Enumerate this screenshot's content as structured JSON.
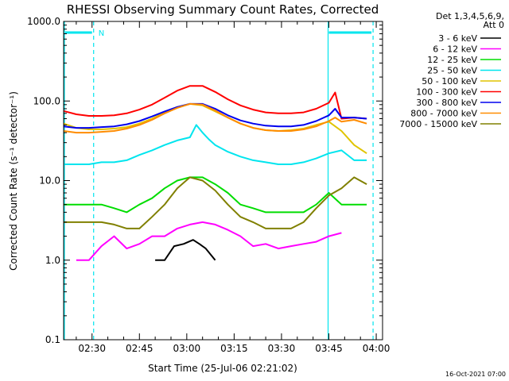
{
  "chart_data": {
    "type": "line",
    "title": "RHESSI Observing Summary Count Rates, Corrected",
    "xlabel": "Start Time (25-Jul-06 02:21:02)",
    "ylabel": "Corrected Count Rate (s⁻¹ detector⁻¹)",
    "yscale": "log",
    "ylim": [
      0.1,
      1000
    ],
    "xlim_minutes_after_0221": [
      0,
      101
    ],
    "x_unit": "minutes after 02:21:02 UT",
    "x_ticks": [
      {
        "label": "02:30",
        "minute": 9
      },
      {
        "label": "02:45",
        "minute": 24
      },
      {
        "label": "03:00",
        "minute": 39
      },
      {
        "label": "03:15",
        "minute": 54
      },
      {
        "label": "03:30",
        "minute": 69
      },
      {
        "label": "03:45",
        "minute": 84
      },
      {
        "label": "04:00",
        "minute": 99
      }
    ],
    "y_ticks": [
      "0.1",
      "1.0",
      "10.0",
      "100.0",
      "1000.0"
    ],
    "legend_header": [
      "Det 1,3,4,5,6,9,",
      "Att 0"
    ],
    "legend_position": "right",
    "footer_date": "16-Oct-2021 07:00",
    "night_marker": "N",
    "night_intervals_min": [
      [
        0,
        9.5
      ],
      [
        83.5,
        98
      ]
    ],
    "series": [
      {
        "name": "3 - 6 keV",
        "color": "#000000",
        "x": [
          29,
          32,
          35,
          38,
          41,
          43,
          45,
          48
        ],
        "y": [
          1.0,
          1.0,
          1.5,
          1.6,
          1.8,
          1.6,
          1.4,
          1.0
        ]
      },
      {
        "name": "6 - 12 keV",
        "color": "#ff00ff",
        "x": [
          4,
          8,
          12,
          16,
          20,
          24,
          28,
          32,
          36,
          40,
          44,
          48,
          52,
          56,
          60,
          64,
          68,
          72,
          76,
          80,
          84,
          88
        ],
        "y": [
          1.0,
          1.0,
          1.5,
          2.0,
          1.4,
          1.6,
          2.0,
          2.0,
          2.5,
          2.8,
          3.0,
          2.8,
          2.4,
          2.0,
          1.5,
          1.6,
          1.4,
          1.5,
          1.6,
          1.7,
          2.0,
          2.2
        ]
      },
      {
        "name": "12 - 25 keV",
        "color": "#00dd00",
        "x": [
          0,
          4,
          8,
          12,
          16,
          20,
          24,
          28,
          32,
          36,
          40,
          44,
          48,
          52,
          56,
          60,
          64,
          68,
          72,
          76,
          80,
          84,
          88,
          92,
          96
        ],
        "y": [
          5.0,
          5.0,
          5.0,
          5.0,
          4.5,
          4.0,
          5.0,
          6.0,
          8.0,
          10.0,
          11.0,
          11.0,
          9.0,
          7.0,
          5.0,
          4.5,
          4.0,
          4.0,
          4.0,
          4.0,
          5.0,
          7.0,
          5.0,
          5.0,
          5.0
        ]
      },
      {
        "name": "25 - 50 keV",
        "color": "#00e5ee",
        "x": [
          0,
          4,
          8,
          12,
          16,
          20,
          24,
          28,
          32,
          36,
          40,
          42,
          44,
          46,
          48,
          52,
          56,
          60,
          64,
          68,
          72,
          76,
          80,
          84,
          88,
          92,
          96
        ],
        "y": [
          16,
          16,
          16,
          17,
          17,
          18,
          21,
          24,
          28,
          32,
          35,
          50,
          40,
          33,
          28,
          23,
          20,
          18,
          17,
          16,
          16,
          17,
          19,
          22,
          24,
          18,
          18
        ]
      },
      {
        "name": "50 - 100 keV",
        "color": "#e0c400",
        "x": [
          0,
          4,
          8,
          12,
          16,
          20,
          24,
          28,
          32,
          36,
          40,
          44,
          48,
          52,
          56,
          60,
          64,
          68,
          72,
          76,
          80,
          84,
          88,
          92,
          96
        ],
        "y": [
          52,
          46,
          44,
          44,
          45,
          47,
          52,
          60,
          72,
          84,
          92,
          88,
          74,
          62,
          52,
          46,
          43,
          42,
          43,
          45,
          50,
          55,
          42,
          28,
          22
        ]
      },
      {
        "name": "100 - 300 keV",
        "color": "#ff0000",
        "x": [
          0,
          4,
          8,
          12,
          16,
          20,
          24,
          28,
          32,
          36,
          40,
          44,
          48,
          52,
          56,
          60,
          64,
          68,
          72,
          76,
          80,
          84,
          86,
          88,
          92,
          96
        ],
        "y": [
          75,
          68,
          65,
          65,
          66,
          70,
          78,
          90,
          110,
          135,
          155,
          155,
          130,
          105,
          88,
          78,
          72,
          70,
          70,
          72,
          80,
          95,
          128,
          60,
          62,
          60
        ]
      },
      {
        "name": "300 - 800 keV",
        "color": "#0000ee",
        "x": [
          0,
          4,
          8,
          12,
          16,
          20,
          24,
          28,
          32,
          36,
          40,
          44,
          48,
          52,
          56,
          60,
          64,
          68,
          72,
          76,
          80,
          84,
          86,
          88,
          92,
          96
        ],
        "y": [
          48,
          46,
          46,
          47,
          48,
          51,
          56,
          64,
          74,
          84,
          92,
          92,
          80,
          66,
          57,
          52,
          49,
          48,
          48,
          50,
          56,
          66,
          80,
          62,
          62,
          60
        ]
      },
      {
        "name": "800 - 7000 keV",
        "color": "#ff8c00",
        "x": [
          0,
          4,
          8,
          12,
          16,
          20,
          24,
          28,
          32,
          36,
          40,
          44,
          48,
          52,
          56,
          60,
          64,
          68,
          72,
          76,
          80,
          84,
          86,
          88,
          92,
          96
        ],
        "y": [
          42,
          40,
          40,
          41,
          42,
          45,
          50,
          58,
          70,
          82,
          92,
          90,
          76,
          62,
          52,
          46,
          43,
          42,
          42,
          44,
          48,
          56,
          62,
          55,
          58,
          52
        ]
      },
      {
        "name": "7000 - 15000 keV",
        "color": "#808000",
        "x": [
          0,
          4,
          8,
          12,
          16,
          20,
          24,
          28,
          32,
          36,
          40,
          44,
          48,
          52,
          56,
          60,
          64,
          68,
          72,
          76,
          80,
          84,
          88,
          92,
          96
        ],
        "y": [
          3.0,
          3.0,
          3.0,
          3.0,
          2.8,
          2.5,
          2.5,
          3.5,
          5.0,
          8.0,
          11.0,
          10.0,
          7.5,
          5.0,
          3.5,
          3.0,
          2.5,
          2.5,
          2.5,
          3.0,
          4.5,
          6.5,
          8.0,
          11.0,
          9.0
        ]
      }
    ]
  }
}
